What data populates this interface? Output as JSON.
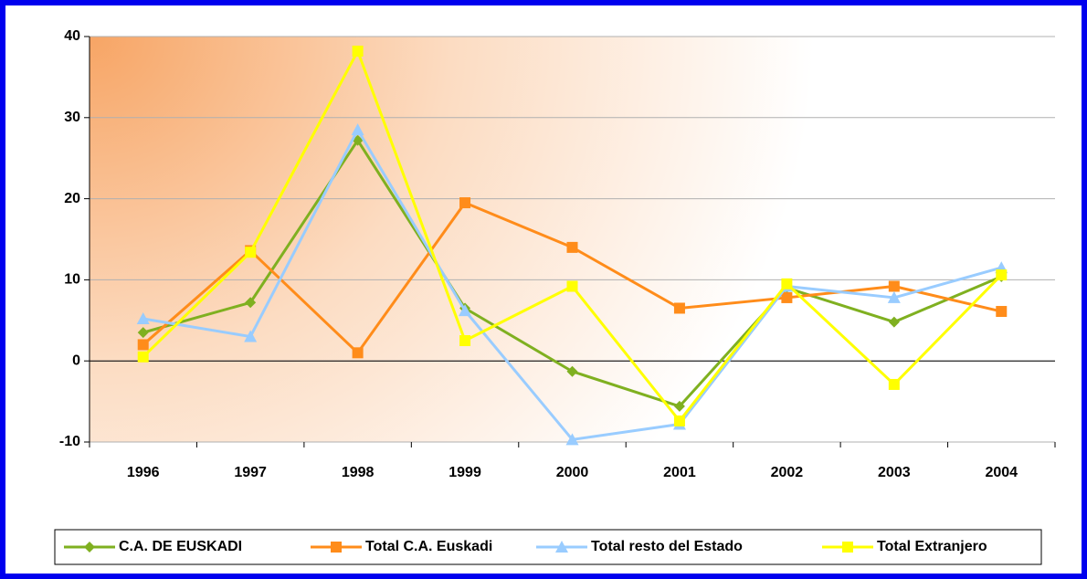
{
  "chart_data": {
    "type": "line",
    "categories": [
      "1996",
      "1997",
      "1998",
      "1999",
      "2000",
      "2001",
      "2002",
      "2003",
      "2004"
    ],
    "series": [
      {
        "name": "C.A. DE EUSKADI",
        "color": "#7fb020",
        "marker": "diamond",
        "values": [
          3.5,
          7.2,
          27.2,
          6.5,
          -1.3,
          -5.6,
          9.0,
          4.8,
          10.4
        ]
      },
      {
        "name": "Total C.A. Euskadi",
        "color": "#ff8c1a",
        "marker": "square",
        "values": [
          2.0,
          13.6,
          1.0,
          19.5,
          14.0,
          6.5,
          7.8,
          9.2,
          6.1
        ]
      },
      {
        "name": "Total resto del Estado",
        "color": "#99ccff",
        "marker": "triangle",
        "values": [
          5.2,
          3.0,
          28.5,
          6.2,
          -9.7,
          -7.8,
          9.2,
          7.8,
          11.5
        ]
      },
      {
        "name": "Total Extranjero",
        "color": "#ffff00",
        "marker": "square",
        "values": [
          0.5,
          13.4,
          38.2,
          2.5,
          9.2,
          -7.4,
          9.5,
          -2.9,
          10.6
        ]
      }
    ],
    "ylim": [
      -10,
      40
    ],
    "yticks": [
      40,
      30,
      20,
      10,
      0,
      -10
    ],
    "grid": true,
    "legend": "bottom"
  }
}
